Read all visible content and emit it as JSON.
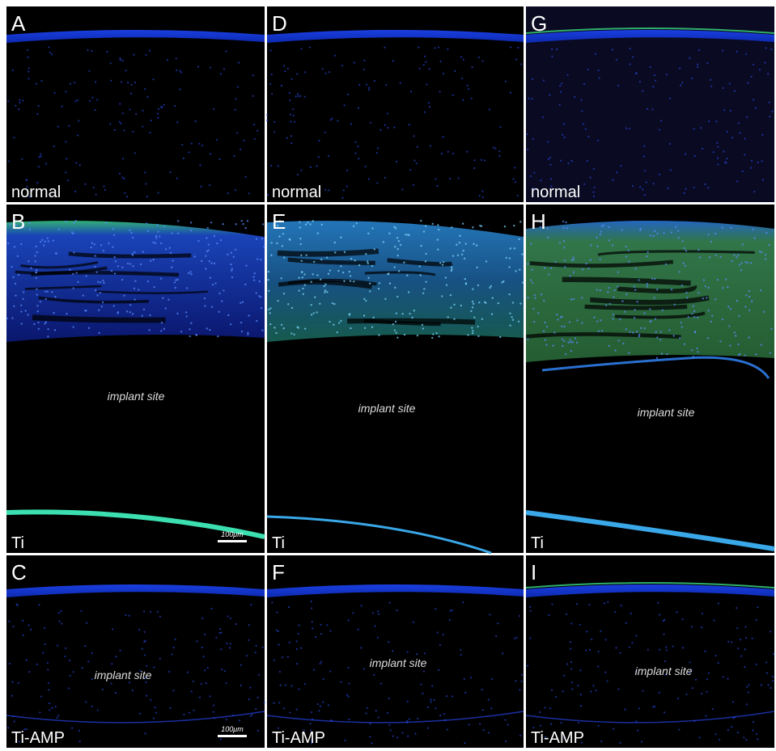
{
  "panels": [
    {
      "letter": "A",
      "condition": "normal"
    },
    {
      "letter": "D",
      "condition": "normal"
    },
    {
      "letter": "G",
      "condition": "normal"
    },
    {
      "letter": "B",
      "condition": "Ti",
      "annotation": "implant site",
      "scale": "100μm"
    },
    {
      "letter": "E",
      "condition": "Ti",
      "annotation": "implant site"
    },
    {
      "letter": "H",
      "condition": "Ti",
      "annotation": "implant site"
    },
    {
      "letter": "C",
      "condition": "Ti-AMP",
      "annotation": "implant site",
      "scale": "100μm"
    },
    {
      "letter": "F",
      "condition": "Ti-AMP",
      "annotation": "implant site"
    },
    {
      "letter": "I",
      "condition": "Ti-AMP",
      "annotation": "implant site"
    }
  ]
}
